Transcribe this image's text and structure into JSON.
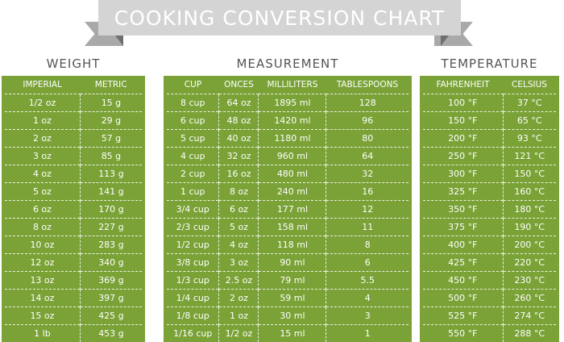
{
  "title": "COOKING CONVERSION CHART",
  "sections": {
    "weight": {
      "title": "WEIGHT",
      "headers": [
        "IMPERIAL",
        "METRIC"
      ],
      "rows": [
        [
          "1/2 oz",
          "15 g"
        ],
        [
          "1 oz",
          "29 g"
        ],
        [
          "2 oz",
          "57 g"
        ],
        [
          "3 oz",
          "85 g"
        ],
        [
          "4 oz",
          "113 g"
        ],
        [
          "5 oz",
          "141 g"
        ],
        [
          "6 oz",
          "170 g"
        ],
        [
          "8 oz",
          "227 g"
        ],
        [
          "10 oz",
          "283 g"
        ],
        [
          "12 oz",
          "340 g"
        ],
        [
          "13 oz",
          "369 g"
        ],
        [
          "14 oz",
          "397 g"
        ],
        [
          "15 oz",
          "425 g"
        ],
        [
          "1 lb",
          "453 g"
        ]
      ]
    },
    "measurement": {
      "title": "MEASUREMENT",
      "headers": [
        "CUP",
        "ONCES",
        "MILLILITERS",
        "TABLESPOONS"
      ],
      "rows": [
        [
          "8 cup",
          "64 oz",
          "1895 ml",
          "128"
        ],
        [
          "6 cup",
          "48 oz",
          "1420 ml",
          "96"
        ],
        [
          "5 cup",
          "40 oz",
          "1180 ml",
          "80"
        ],
        [
          "4 cup",
          "32 oz",
          "960 ml",
          "64"
        ],
        [
          "2 cup",
          "16 oz",
          "480 ml",
          "32"
        ],
        [
          "1 cup",
          "8 oz",
          "240 ml",
          "16"
        ],
        [
          "3/4 cup",
          "6 oz",
          "177 ml",
          "12"
        ],
        [
          "2/3 cup",
          "5 oz",
          "158 ml",
          "11"
        ],
        [
          "1/2 cup",
          "4 oz",
          "118 ml",
          "8"
        ],
        [
          "3/8 cup",
          "3 oz",
          "90 ml",
          "6"
        ],
        [
          "1/3 cup",
          "2.5 oz",
          "79 ml",
          "5.5"
        ],
        [
          "1/4 cup",
          "2 oz",
          "59 ml",
          "4"
        ],
        [
          "1/8 cup",
          "1 oz",
          "30 ml",
          "3"
        ],
        [
          "1/16 cup",
          "1/2 oz",
          "15 ml",
          "1"
        ]
      ]
    },
    "temperature": {
      "title": "TEMPERATURE",
      "headers": [
        "FAHRENHEIT",
        "CELSIUS"
      ],
      "rows": [
        [
          "100 °F",
          "37 °C"
        ],
        [
          "150 °F",
          "65 °C"
        ],
        [
          "200 °F",
          "93 °C"
        ],
        [
          "250 °F",
          "121 °C"
        ],
        [
          "300 °F",
          "150 °C"
        ],
        [
          "325 °F",
          "160 °C"
        ],
        [
          "350 °F",
          "180 °C"
        ],
        [
          "375 °F",
          "190 °C"
        ],
        [
          "400 °F",
          "200 °C"
        ],
        [
          "425 °F",
          "220 °C"
        ],
        [
          "450 °F",
          "230 °C"
        ],
        [
          "500 °F",
          "260 °C"
        ],
        [
          "525 °F",
          "274 °C"
        ],
        [
          "550 °F",
          "288 °C"
        ]
      ]
    }
  },
  "colors": {
    "panel": "#7aa236",
    "banner": "#d4d4d4",
    "banner_tail": "#a9a9a9"
  }
}
